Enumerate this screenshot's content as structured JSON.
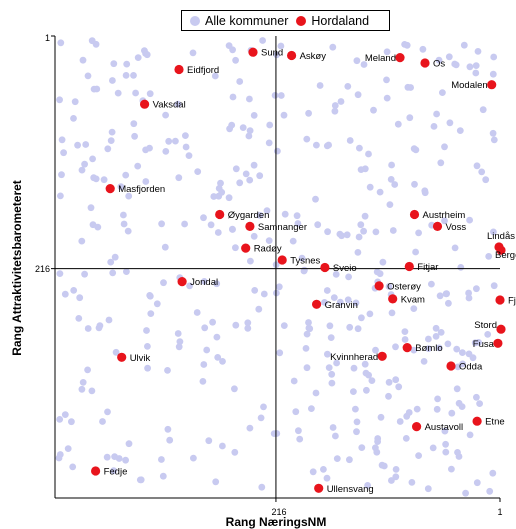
{
  "legend": {
    "all_label": "Alle kommuner",
    "highlight_label": "Hordaland"
  },
  "colors": {
    "all": "#c8caf0",
    "highlight": "#e8141c",
    "axes": "#000000"
  },
  "chart_data": {
    "type": "scatter",
    "xlabel": "Rang NæringsNM",
    "ylabel": "Rang Attraktivitetsbarometeret",
    "x_ticks": [
      "216",
      "1"
    ],
    "y_ticks": [
      "1",
      "216"
    ],
    "x_reversed": true,
    "y_reversed": true,
    "xlim": [
      428,
      1
    ],
    "ylim": [
      428,
      1
    ],
    "grid": false,
    "legend_position": "top",
    "series": [
      {
        "name": "Hordaland",
        "points": [
          {
            "label": "Sund",
            "x": 238,
            "y": 16
          },
          {
            "label": "Askøy",
            "x": 201,
            "y": 19
          },
          {
            "label": "Meland",
            "x": 97,
            "y": 21
          },
          {
            "label": "Os",
            "x": 73,
            "y": 26
          },
          {
            "label": "Eidfjord",
            "x": 309,
            "y": 32
          },
          {
            "label": "Modalen",
            "x": 9,
            "y": 46
          },
          {
            "label": "Vaksdal",
            "x": 342,
            "y": 64
          },
          {
            "label": "Masfjorden",
            "x": 375,
            "y": 142
          },
          {
            "label": "Øygarden",
            "x": 270,
            "y": 166
          },
          {
            "label": "Austrheim",
            "x": 83,
            "y": 166
          },
          {
            "label": "Samnanger",
            "x": 241,
            "y": 177
          },
          {
            "label": "Voss",
            "x": 61,
            "y": 177
          },
          {
            "label": "Lindås",
            "x": 2,
            "y": 196
          },
          {
            "label": "Radøy",
            "x": 245,
            "y": 197
          },
          {
            "label": "Bergen",
            "x": 0,
            "y": 199
          },
          {
            "label": "Tysnes",
            "x": 210,
            "y": 208
          },
          {
            "label": "Fitjar",
            "x": 88,
            "y": 214
          },
          {
            "label": "Sveio",
            "x": 169,
            "y": 215
          },
          {
            "label": "Jondal",
            "x": 306,
            "y": 228
          },
          {
            "label": "Osterøy",
            "x": 117,
            "y": 232
          },
          {
            "label": "Kvam",
            "x": 104,
            "y": 244
          },
          {
            "label": "Fjell",
            "x": 1,
            "y": 245
          },
          {
            "label": "Granvin",
            "x": 177,
            "y": 249
          },
          {
            "label": "Stord",
            "x": 0,
            "y": 272
          },
          {
            "label": "Fusa",
            "x": 3,
            "y": 285
          },
          {
            "label": "Bømlo",
            "x": 90,
            "y": 289
          },
          {
            "label": "Kvinnherad",
            "x": 114,
            "y": 297
          },
          {
            "label": "Ulvik",
            "x": 364,
            "y": 298
          },
          {
            "label": "Odda",
            "x": 48,
            "y": 306
          },
          {
            "label": "Etne",
            "x": 23,
            "y": 357
          },
          {
            "label": "Austavoll",
            "x": 81,
            "y": 362
          },
          {
            "label": "Fedje",
            "x": 389,
            "y": 403
          },
          {
            "label": "Ullensvang",
            "x": 175,
            "y": 419
          }
        ]
      }
    ]
  }
}
